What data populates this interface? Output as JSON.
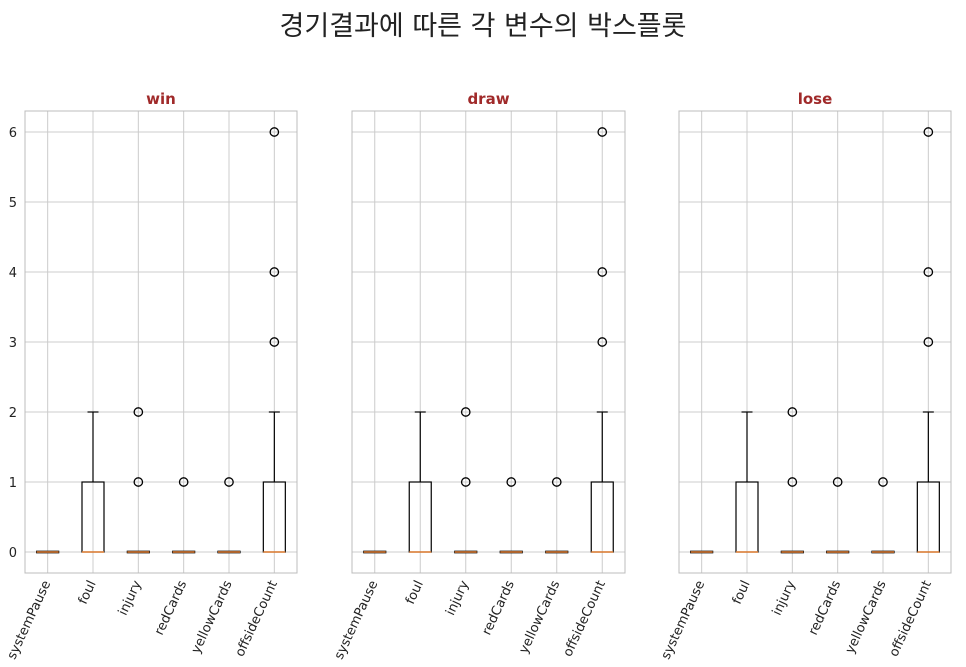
{
  "figure": {
    "suptitle": "경기결과에 따른 각 변수의 박스플롯"
  },
  "chart_data": [
    {
      "type": "box",
      "title": "win",
      "categories": [
        "systemPause",
        "foul",
        "injury",
        "redCards",
        "yellowCards",
        "offsideCount"
      ],
      "ylim": [
        -0.3,
        6.3
      ],
      "yticks": [
        0,
        1,
        2,
        3,
        4,
        5,
        6
      ],
      "grid": true,
      "boxes": [
        {
          "q1": 0,
          "median": 0,
          "q3": 0,
          "whislo": 0,
          "whishi": 0,
          "fliers": []
        },
        {
          "q1": 0,
          "median": 0,
          "q3": 1,
          "whislo": 0,
          "whishi": 2,
          "fliers": []
        },
        {
          "q1": 0,
          "median": 0,
          "q3": 0,
          "whislo": 0,
          "whishi": 0,
          "fliers": [
            1,
            2
          ]
        },
        {
          "q1": 0,
          "median": 0,
          "q3": 0,
          "whislo": 0,
          "whishi": 0,
          "fliers": [
            1
          ]
        },
        {
          "q1": 0,
          "median": 0,
          "q3": 0,
          "whislo": 0,
          "whishi": 0,
          "fliers": [
            1
          ]
        },
        {
          "q1": 0,
          "median": 0,
          "q3": 1,
          "whislo": 0,
          "whishi": 2,
          "fliers": [
            3,
            4,
            6
          ]
        }
      ]
    },
    {
      "type": "box",
      "title": "draw",
      "categories": [
        "systemPause",
        "foul",
        "injury",
        "redCards",
        "yellowCards",
        "offsideCount"
      ],
      "ylim": [
        -0.3,
        6.3
      ],
      "yticks": [
        0,
        1,
        2,
        3,
        4,
        5,
        6
      ],
      "grid": true,
      "boxes": [
        {
          "q1": 0,
          "median": 0,
          "q3": 0,
          "whislo": 0,
          "whishi": 0,
          "fliers": []
        },
        {
          "q1": 0,
          "median": 0,
          "q3": 1,
          "whislo": 0,
          "whishi": 2,
          "fliers": []
        },
        {
          "q1": 0,
          "median": 0,
          "q3": 0,
          "whislo": 0,
          "whishi": 0,
          "fliers": [
            1,
            2
          ]
        },
        {
          "q1": 0,
          "median": 0,
          "q3": 0,
          "whislo": 0,
          "whishi": 0,
          "fliers": [
            1
          ]
        },
        {
          "q1": 0,
          "median": 0,
          "q3": 0,
          "whislo": 0,
          "whishi": 0,
          "fliers": [
            1
          ]
        },
        {
          "q1": 0,
          "median": 0,
          "q3": 1,
          "whislo": 0,
          "whishi": 2,
          "fliers": [
            3,
            4,
            6
          ]
        }
      ]
    },
    {
      "type": "box",
      "title": "lose",
      "categories": [
        "systemPause",
        "foul",
        "injury",
        "redCards",
        "yellowCards",
        "offsideCount"
      ],
      "ylim": [
        -0.3,
        6.3
      ],
      "yticks": [
        0,
        1,
        2,
        3,
        4,
        5,
        6
      ],
      "grid": true,
      "boxes": [
        {
          "q1": 0,
          "median": 0,
          "q3": 0,
          "whislo": 0,
          "whishi": 0,
          "fliers": []
        },
        {
          "q1": 0,
          "median": 0,
          "q3": 1,
          "whislo": 0,
          "whishi": 2,
          "fliers": []
        },
        {
          "q1": 0,
          "median": 0,
          "q3": 0,
          "whislo": 0,
          "whishi": 0,
          "fliers": [
            1,
            2
          ]
        },
        {
          "q1": 0,
          "median": 0,
          "q3": 0,
          "whislo": 0,
          "whishi": 0,
          "fliers": [
            1
          ]
        },
        {
          "q1": 0,
          "median": 0,
          "q3": 0,
          "whislo": 0,
          "whishi": 0,
          "fliers": [
            1
          ]
        },
        {
          "q1": 0,
          "median": 0,
          "q3": 1,
          "whislo": 0,
          "whishi": 2,
          "fliers": [
            3,
            4,
            6
          ]
        }
      ]
    }
  ],
  "colors": {
    "box_edge": "#000000",
    "median": "#e8853a",
    "grid": "#cccccc",
    "spine": "#bcbcbc",
    "title": "#a02a2a"
  }
}
